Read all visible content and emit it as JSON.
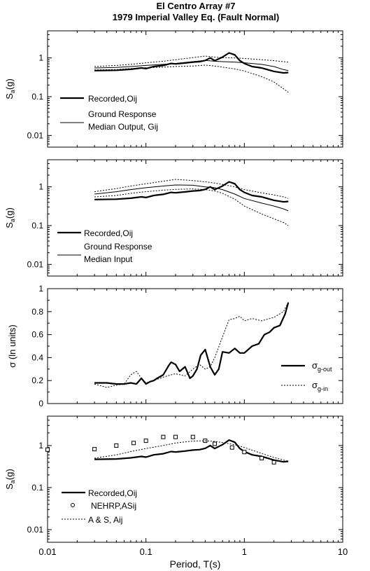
{
  "title_lines": [
    "El Centro Array #7",
    "1979 Imperial Valley Eq. (Fault Normal)"
  ],
  "xlabel": "Period, T(s)",
  "x_tick_labels": [
    "0.01",
    "0.1",
    "1",
    "10"
  ],
  "chart_data": [
    {
      "type": "line",
      "xscale": "log",
      "yscale": "log",
      "xlim": [
        0.01,
        10
      ],
      "ylim": [
        0.005,
        5
      ],
      "ylabel": "Sa(g)",
      "y_ticks": [
        0.01,
        0.1,
        1
      ],
      "y_tick_labels": [
        "0.01",
        "0.1",
        "1"
      ],
      "legend_position": "left",
      "legend": [
        {
          "style": "thick",
          "lines": [
            "Recorded,Oij"
          ]
        },
        {
          "style": "thin",
          "lines": [
            "Ground Response",
            "Median Output, Gij"
          ]
        }
      ],
      "series": [
        {
          "name": "Recorded,Oij",
          "style": "thick",
          "x": [
            0.03,
            0.05,
            0.07,
            0.09,
            0.1,
            0.12,
            0.15,
            0.18,
            0.2,
            0.25,
            0.3,
            0.35,
            0.4,
            0.45,
            0.5,
            0.6,
            0.7,
            0.8,
            0.9,
            1,
            1.2,
            1.5,
            2,
            2.5,
            2.8
          ],
          "y": [
            0.47,
            0.48,
            0.51,
            0.55,
            0.53,
            0.6,
            0.64,
            0.72,
            0.7,
            0.74,
            0.78,
            0.8,
            0.86,
            1.0,
            0.85,
            1.05,
            1.35,
            1.2,
            0.85,
            0.72,
            0.6,
            0.55,
            0.45,
            0.41,
            0.42
          ]
        },
        {
          "name": "Ground Response Median Output, Gij",
          "style": "thin",
          "x": [
            0.03,
            0.05,
            0.07,
            0.1,
            0.15,
            0.2,
            0.3,
            0.4,
            0.5,
            0.6,
            0.8,
            1,
            1.5,
            2,
            2.5,
            2.8
          ],
          "y": [
            0.55,
            0.57,
            0.6,
            0.64,
            0.68,
            0.72,
            0.8,
            0.86,
            0.82,
            0.8,
            0.78,
            0.75,
            0.68,
            0.6,
            0.5,
            0.47
          ]
        },
        {
          "name": "upper",
          "style": "dotted",
          "x": [
            0.03,
            0.05,
            0.07,
            0.1,
            0.15,
            0.2,
            0.3,
            0.4,
            0.5,
            0.6,
            0.8,
            1,
            1.5,
            2,
            2.5,
            2.8
          ],
          "y": [
            0.6,
            0.64,
            0.68,
            0.75,
            0.82,
            0.9,
            1.02,
            1.12,
            1.05,
            1.02,
            1.0,
            0.97,
            0.9,
            0.85,
            0.8,
            0.78
          ]
        },
        {
          "name": "lower",
          "style": "dotted",
          "x": [
            0.03,
            0.05,
            0.07,
            0.1,
            0.15,
            0.2,
            0.3,
            0.4,
            0.5,
            0.6,
            0.8,
            1,
            1.5,
            2,
            2.5,
            2.8
          ],
          "y": [
            0.49,
            0.5,
            0.53,
            0.56,
            0.58,
            0.6,
            0.62,
            0.65,
            0.62,
            0.58,
            0.52,
            0.46,
            0.33,
            0.24,
            0.16,
            0.13
          ]
        }
      ]
    },
    {
      "type": "line",
      "xscale": "log",
      "yscale": "log",
      "xlim": [
        0.01,
        10
      ],
      "ylim": [
        0.005,
        5
      ],
      "ylabel": "Sa(g)",
      "y_ticks": [
        0.01,
        0.1,
        1
      ],
      "y_tick_labels": [
        "0.01",
        "0.1",
        "1"
      ],
      "legend_position": "left",
      "legend": [
        {
          "style": "thick",
          "lines": [
            "Recorded,Oij"
          ]
        },
        {
          "style": "thin",
          "lines": [
            "Ground Response",
            "Median Input"
          ]
        }
      ],
      "series": [
        {
          "name": "Recorded,Oij",
          "style": "thick",
          "x": [
            0.03,
            0.05,
            0.07,
            0.09,
            0.1,
            0.12,
            0.15,
            0.18,
            0.2,
            0.25,
            0.3,
            0.35,
            0.4,
            0.45,
            0.5,
            0.6,
            0.7,
            0.8,
            0.9,
            1,
            1.2,
            1.5,
            2,
            2.5,
            2.8
          ],
          "y": [
            0.47,
            0.48,
            0.51,
            0.55,
            0.53,
            0.6,
            0.64,
            0.72,
            0.7,
            0.74,
            0.78,
            0.8,
            0.86,
            1.0,
            0.85,
            1.05,
            1.35,
            1.2,
            0.85,
            0.72,
            0.6,
            0.55,
            0.45,
            0.41,
            0.42
          ]
        },
        {
          "name": "Ground Response Median Input",
          "style": "thin",
          "x": [
            0.03,
            0.05,
            0.07,
            0.1,
            0.15,
            0.2,
            0.3,
            0.4,
            0.5,
            0.6,
            0.8,
            1,
            1.5,
            2,
            2.5,
            2.8
          ],
          "y": [
            0.65,
            0.75,
            0.85,
            0.95,
            1.05,
            1.12,
            1.1,
            1.0,
            0.95,
            0.85,
            0.65,
            0.5,
            0.38,
            0.32,
            0.27,
            0.24
          ]
        },
        {
          "name": "upper",
          "style": "dotted",
          "x": [
            0.03,
            0.05,
            0.07,
            0.1,
            0.15,
            0.2,
            0.3,
            0.4,
            0.5,
            0.6,
            0.8,
            1,
            1.5,
            2,
            2.5,
            2.8
          ],
          "y": [
            0.75,
            0.9,
            1.05,
            1.2,
            1.4,
            1.55,
            1.45,
            1.35,
            1.25,
            1.15,
            1.0,
            0.85,
            0.7,
            0.62,
            0.55,
            0.5
          ]
        },
        {
          "name": "lower",
          "style": "dotted",
          "x": [
            0.03,
            0.05,
            0.07,
            0.1,
            0.15,
            0.2,
            0.3,
            0.4,
            0.5,
            0.6,
            0.8,
            1,
            1.5,
            2,
            2.5,
            2.8
          ],
          "y": [
            0.55,
            0.6,
            0.68,
            0.75,
            0.82,
            0.86,
            0.88,
            0.85,
            0.78,
            0.68,
            0.48,
            0.32,
            0.2,
            0.15,
            0.12,
            0.1
          ]
        }
      ]
    },
    {
      "type": "line",
      "xscale": "log",
      "yscale": "linear",
      "xlim": [
        0.01,
        10
      ],
      "ylim": [
        0,
        1
      ],
      "ylabel": "σ (ln units)",
      "y_ticks": [
        0,
        0.2,
        0.4,
        0.6,
        0.8,
        1
      ],
      "y_tick_labels": [
        "0",
        "0.2",
        "0.4",
        "0.6",
        "0.8",
        "1"
      ],
      "legend_position": "bottom-right",
      "legend": [
        {
          "style": "thick",
          "symbol": "σ",
          "sub": "g-out"
        },
        {
          "style": "dotted",
          "symbol": "σ",
          "sub": "g-in"
        }
      ],
      "series": [
        {
          "name": "σg-out",
          "style": "thick",
          "x": [
            0.03,
            0.04,
            0.05,
            0.06,
            0.07,
            0.08,
            0.09,
            0.1,
            0.11,
            0.12,
            0.13,
            0.15,
            0.17,
            0.18,
            0.2,
            0.22,
            0.25,
            0.28,
            0.3,
            0.33,
            0.36,
            0.4,
            0.45,
            0.5,
            0.55,
            0.6,
            0.7,
            0.8,
            0.9,
            1,
            1.2,
            1.4,
            1.6,
            1.8,
            2,
            2.3,
            2.6,
            2.8
          ],
          "y": [
            0.18,
            0.18,
            0.17,
            0.17,
            0.18,
            0.17,
            0.22,
            0.17,
            0.19,
            0.2,
            0.22,
            0.25,
            0.33,
            0.36,
            0.34,
            0.28,
            0.32,
            0.22,
            0.24,
            0.3,
            0.42,
            0.47,
            0.32,
            0.25,
            0.3,
            0.45,
            0.44,
            0.48,
            0.44,
            0.44,
            0.5,
            0.52,
            0.6,
            0.62,
            0.66,
            0.68,
            0.78,
            0.88
          ]
        },
        {
          "name": "σg-in",
          "style": "dotted",
          "x": [
            0.03,
            0.04,
            0.05,
            0.06,
            0.07,
            0.08,
            0.09,
            0.1,
            0.12,
            0.15,
            0.18,
            0.2,
            0.25,
            0.3,
            0.35,
            0.4,
            0.45,
            0.5,
            0.6,
            0.7,
            0.8,
            0.9,
            1,
            1.2,
            1.5,
            2,
            2.5,
            2.8
          ],
          "y": [
            0.17,
            0.14,
            0.16,
            0.17,
            0.25,
            0.28,
            0.22,
            0.18,
            0.2,
            0.23,
            0.25,
            0.26,
            0.24,
            0.3,
            0.34,
            0.3,
            0.32,
            0.4,
            0.58,
            0.73,
            0.74,
            0.76,
            0.72,
            0.74,
            0.72,
            0.75,
            0.8,
            0.88
          ]
        }
      ]
    },
    {
      "type": "line",
      "xscale": "log",
      "yscale": "log",
      "xlim": [
        0.01,
        10
      ],
      "ylim": [
        0.005,
        5
      ],
      "ylabel": "Sa(g)",
      "y_ticks": [
        0.01,
        0.1,
        1
      ],
      "y_tick_labels": [
        "0.01",
        "0.1",
        "1"
      ],
      "legend_position": "bottom-left",
      "legend": [
        {
          "style": "thick",
          "lines": [
            "Recorded,Oij"
          ]
        },
        {
          "style": "marker",
          "lines": [
            "NEHRP,ASij"
          ]
        },
        {
          "style": "dotted",
          "lines": [
            "A & S, Aij"
          ]
        }
      ],
      "series": [
        {
          "name": "Recorded,Oij",
          "style": "thick",
          "x": [
            0.03,
            0.05,
            0.07,
            0.09,
            0.1,
            0.12,
            0.15,
            0.18,
            0.2,
            0.25,
            0.3,
            0.35,
            0.4,
            0.45,
            0.5,
            0.6,
            0.7,
            0.8,
            0.9,
            1,
            1.2,
            1.5,
            2,
            2.5,
            2.8
          ],
          "y": [
            0.47,
            0.48,
            0.51,
            0.55,
            0.53,
            0.6,
            0.64,
            0.72,
            0.7,
            0.74,
            0.78,
            0.8,
            0.86,
            1.0,
            0.85,
            1.05,
            1.35,
            1.2,
            0.85,
            0.72,
            0.6,
            0.55,
            0.45,
            0.41,
            0.42
          ]
        },
        {
          "name": "NEHRP,ASij",
          "style": "marker",
          "x": [
            0.01,
            0.03,
            0.05,
            0.075,
            0.1,
            0.15,
            0.2,
            0.3,
            0.4,
            0.5,
            0.75,
            1,
            1.5,
            2
          ],
          "y": [
            0.8,
            0.82,
            1.0,
            1.15,
            1.3,
            1.6,
            1.6,
            1.6,
            1.3,
            1.1,
            0.9,
            0.7,
            0.5,
            0.4
          ]
        },
        {
          "name": "A & S, Aij",
          "style": "dotted",
          "x": [
            0.03,
            0.05,
            0.07,
            0.1,
            0.15,
            0.2,
            0.3,
            0.4,
            0.5,
            0.6,
            0.8,
            1,
            1.5,
            2,
            2.5,
            2.8
          ],
          "y": [
            0.5,
            0.6,
            0.72,
            0.85,
            1.0,
            1.15,
            1.28,
            1.3,
            1.25,
            1.18,
            1.05,
            0.9,
            0.65,
            0.52,
            0.45,
            0.42
          ]
        }
      ]
    }
  ]
}
